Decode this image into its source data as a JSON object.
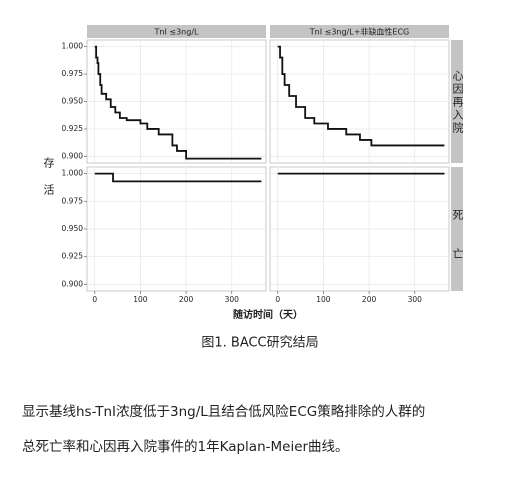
{
  "figure": {
    "ylabel": "存活",
    "xlabel": "随访时间（天）"
  },
  "chart_data": [
    {
      "type": "line",
      "step": true,
      "title": "TnI ≤3ng/L",
      "xlim": [
        -17,
        375
      ],
      "ylim": [
        0.894,
        1.006
      ],
      "yticks": [
        {
          "value": 0.9,
          "label": "0.900"
        },
        0.925,
        {
          "value": 0.95,
          "label": "0.950"
        },
        0.975,
        {
          "value": 1,
          "label": "1.000"
        }
      ],
      "x": [
        0,
        3,
        6,
        8,
        12,
        15,
        25,
        35,
        45,
        55,
        70,
        100,
        115,
        140,
        170,
        180,
        200,
        365
      ],
      "series": [
        {
          "color": "#111111",
          "values": [
            1,
            0.99,
            0.985,
            0.975,
            0.965,
            0.957,
            0.952,
            0.945,
            0.94,
            0.935,
            0.933,
            0.93,
            0.925,
            0.92,
            0.91,
            0.905,
            0.898,
            0.898
          ]
        }
      ]
    },
    {
      "type": "line",
      "step": true,
      "title": "TnI ≤3ng/L+非缺血性ECG",
      "row_label": "心因再入院",
      "xlim": [
        -17,
        375
      ],
      "ylim": [
        0.894,
        1.006
      ],
      "x": [
        0,
        5,
        10,
        15,
        25,
        40,
        60,
        80,
        110,
        150,
        180,
        205,
        365
      ],
      "series": [
        {
          "color": "#111111",
          "values": [
            1,
            0.99,
            0.975,
            0.965,
            0.955,
            0.945,
            0.935,
            0.93,
            0.925,
            0.92,
            0.915,
            0.91,
            0.91
          ]
        }
      ]
    },
    {
      "type": "line",
      "step": true,
      "xlim": [
        -17,
        375
      ],
      "ylim": [
        0.894,
        1.006
      ],
      "yticks": [
        {
          "value": 0.9,
          "label": "0.900"
        },
        0.925,
        {
          "value": 0.95,
          "label": "0.950"
        },
        0.975,
        {
          "value": 1,
          "label": "1.000"
        }
      ],
      "xticks": [
        0,
        100,
        200,
        300
      ],
      "x": [
        0,
        40,
        365
      ],
      "series": [
        {
          "color": "#111111",
          "values": [
            1,
            0.993,
            0.993
          ]
        }
      ]
    },
    {
      "type": "line",
      "step": true,
      "row_label": "死亡",
      "xlim": [
        -17,
        375
      ],
      "ylim": [
        0.894,
        1.006
      ],
      "xticks": [
        0,
        100,
        200,
        300
      ],
      "x": [
        0,
        365
      ],
      "series": [
        {
          "color": "#111111",
          "values": [
            1,
            1
          ]
        }
      ]
    }
  ],
  "caption": "图1. BACC研究结局",
  "paragraph": [
    "显示基线hs-TnI浓度低于3ng/L且结合低风险ECG策略排除的人群的",
    "总死亡率和心因再入院事件的1年Kaplan-Meier曲线。"
  ]
}
